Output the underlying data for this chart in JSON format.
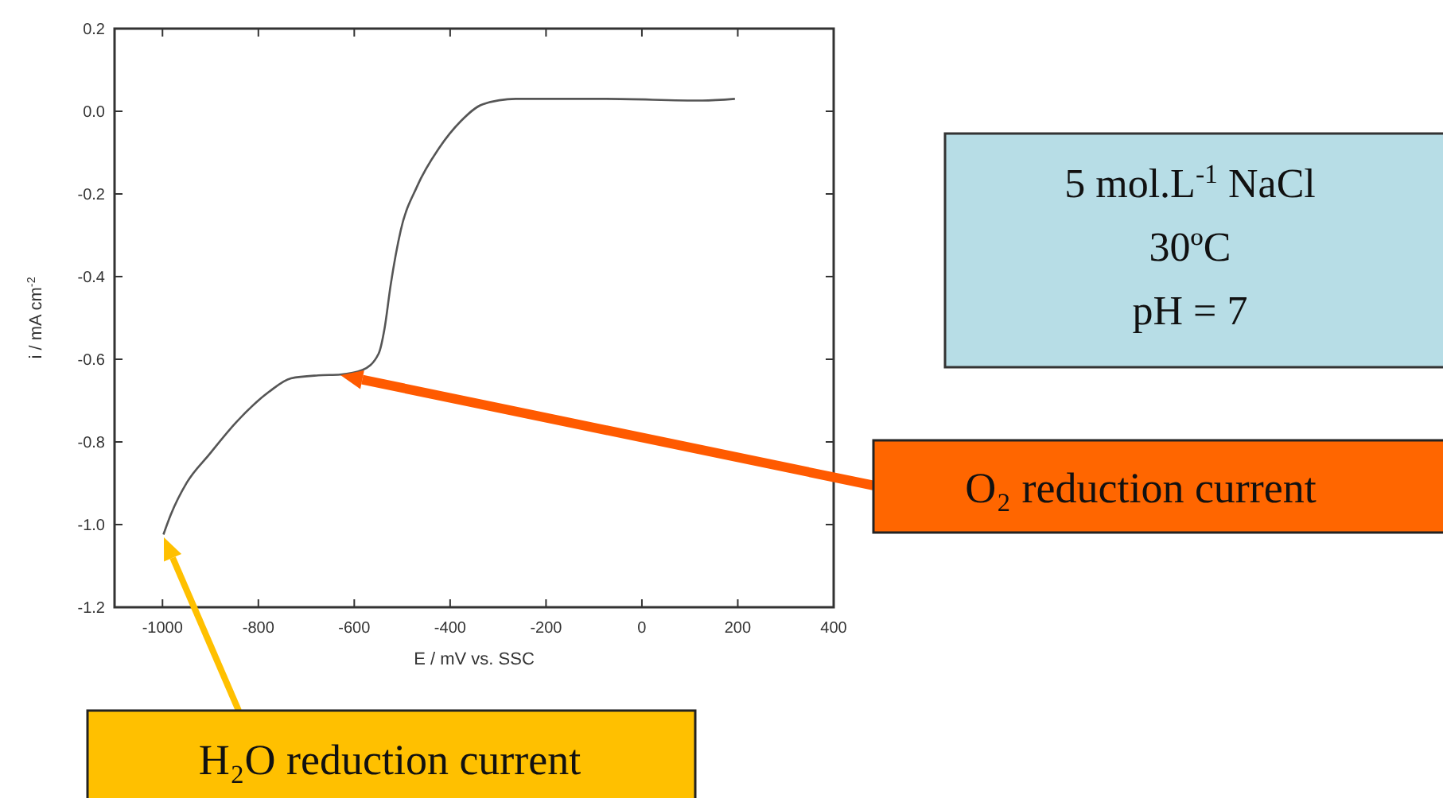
{
  "chart_data": {
    "type": "line",
    "xlabel": "E / mV vs. SSC",
    "ylabel": "i / mA cm$^{-2}$",
    "x": [
      -998,
      -983,
      -949,
      -903,
      -846,
      -778,
      -732,
      -675,
      -629,
      -583,
      -549,
      -537,
      -524,
      -503,
      -469,
      -423,
      -377,
      -332,
      -263,
      -80,
      126,
      194
    ],
    "series": [
      {
        "color": "#555555",
        "values": [
          -1.024,
          -0.977,
          -0.898,
          -0.831,
          -0.752,
          -0.679,
          -0.646,
          -0.639,
          -0.637,
          -0.626,
          -0.586,
          -0.527,
          -0.42,
          -0.288,
          -0.182,
          -0.089,
          -0.023,
          0.017,
          0.03,
          0.03,
          0.026,
          0.03
        ]
      }
    ],
    "xlim": [
      -1100,
      400
    ],
    "xticks": [
      -1000,
      -800,
      -600,
      -400,
      -200,
      0,
      200,
      400
    ],
    "ylim": [
      -1.2,
      0.2
    ],
    "yticks": [
      {
        "value": -1.2,
        "label": "-1.2"
      },
      {
        "value": -1,
        "label": "-1.0"
      },
      {
        "value": -0.8,
        "label": "-0.8"
      },
      {
        "value": -0.6,
        "label": "-0.6"
      },
      {
        "value": -0.4,
        "label": "-0.4"
      },
      {
        "value": -0.2,
        "label": "-0.2"
      },
      {
        "value": 0,
        "label": "0.0"
      },
      {
        "value": 0.2,
        "label": "0.2"
      }
    ],
    "grid": false,
    "marker": "none",
    "line_style": "solid",
    "annotations": [
      "5 mol.L$^{-1}$ NaCl",
      "30ºC",
      "pH = 7",
      "O₂ reduction current",
      "H₂O reduction current"
    ]
  }
}
